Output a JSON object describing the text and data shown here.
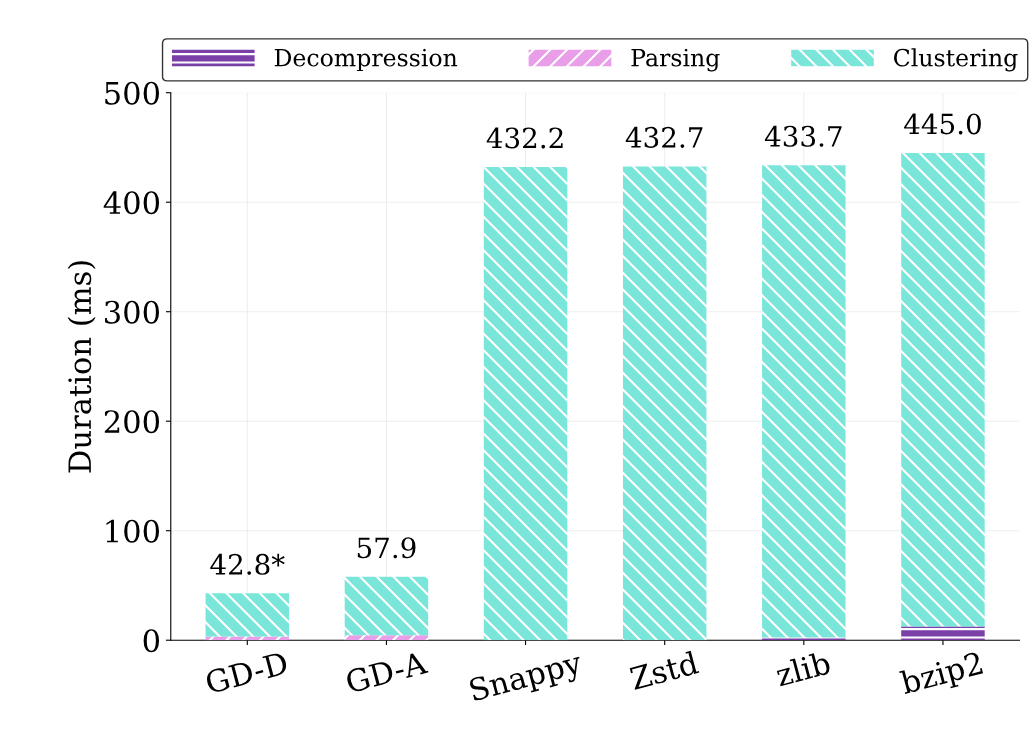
{
  "chart_data": {
    "type": "bar",
    "stacked": true,
    "ylabel": "Duration (ms)",
    "categories": [
      "GD-D",
      "GD-A",
      "Snappy",
      "Zstd",
      "zlib",
      "bzip2"
    ],
    "series": [
      {
        "name": "Decompression",
        "color": "#7b3fa8",
        "values": [
          0,
          0,
          0,
          0,
          2.5,
          12.5
        ]
      },
      {
        "name": "Parsing",
        "color": "#e89ee8",
        "values": [
          3.5,
          4.5,
          0,
          0,
          0,
          0
        ]
      },
      {
        "name": "Clustering",
        "color": "#7ae6da",
        "values": [
          39.3,
          53.4,
          432.2,
          432.7,
          431.2,
          432.5
        ]
      }
    ],
    "totals": [
      "42.8*",
      "57.9",
      "432.2",
      "432.7",
      "433.7",
      "445.0"
    ],
    "ylim": [
      0,
      500
    ],
    "yticks": [
      0,
      100,
      200,
      300,
      400,
      500
    ],
    "grid": true,
    "legend": "top"
  }
}
